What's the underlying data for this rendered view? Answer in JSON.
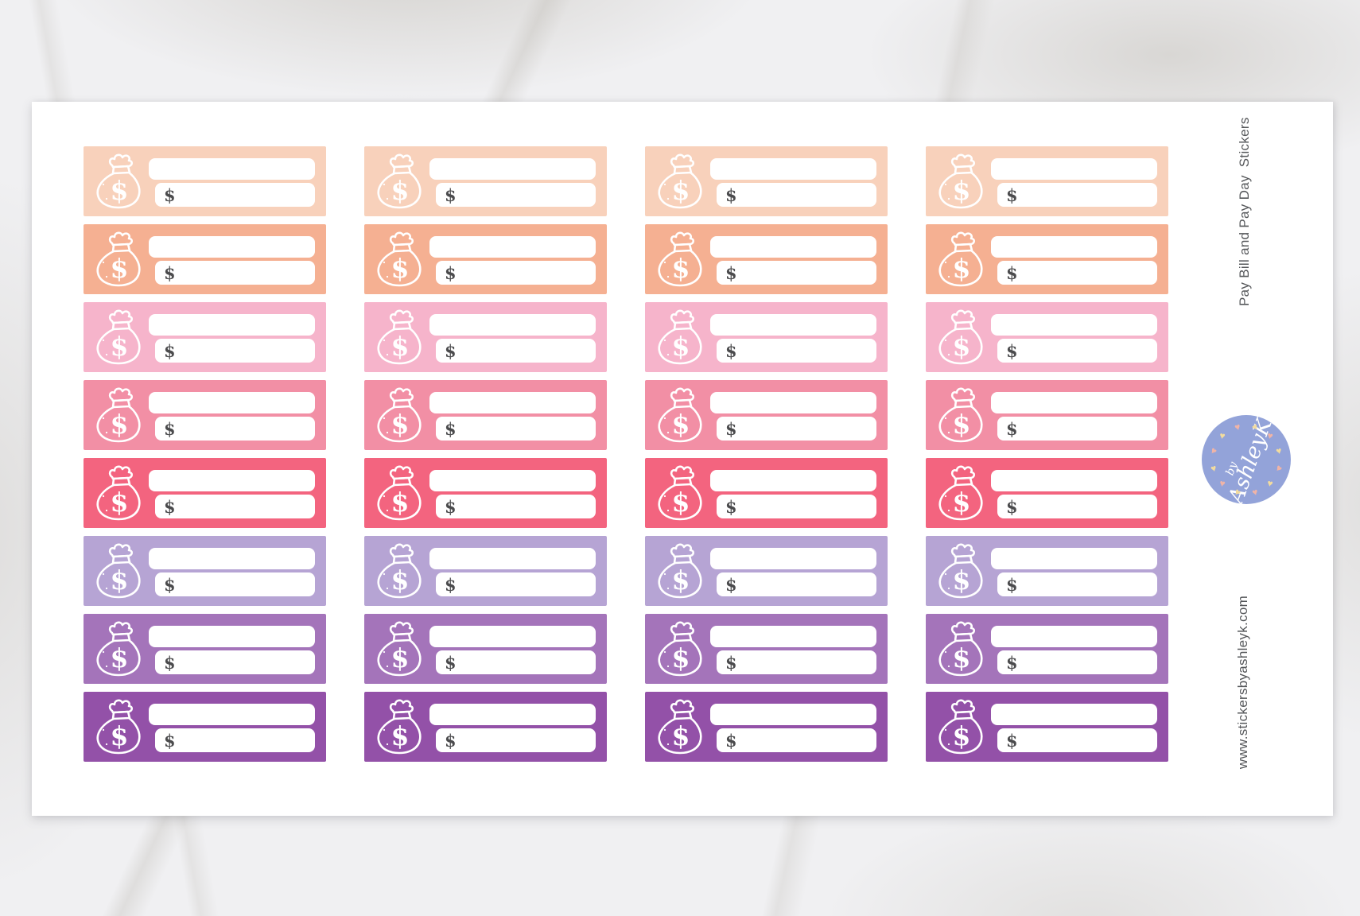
{
  "page": {
    "side_title": "Pay Bill and Pay Day  Stickers",
    "website": "www.stickersbyashleyk.com",
    "logo": {
      "by": "by",
      "name": "AshleyK",
      "circle_color": "#93a3d9",
      "heart_glyph": "♥",
      "heart_color_pink": "#f0b4a7",
      "heart_color_yellow": "#f3dc9e"
    }
  },
  "sheet": {
    "columns": 4,
    "rows": [
      {
        "name": "peach-light",
        "color": "#f8d1bb"
      },
      {
        "name": "peach",
        "color": "#f5b092"
      },
      {
        "name": "pink-light",
        "color": "#f6b4cb"
      },
      {
        "name": "pink",
        "color": "#f28fa5"
      },
      {
        "name": "rose",
        "color": "#f3647f"
      },
      {
        "name": "lilac",
        "color": "#b6a4d4"
      },
      {
        "name": "purple-medium",
        "color": "#a474ba"
      },
      {
        "name": "purple",
        "color": "#9351a8"
      }
    ],
    "sticker": {
      "icon": "money-bag",
      "bag_symbol": "$",
      "currency_symbol": "$"
    }
  }
}
